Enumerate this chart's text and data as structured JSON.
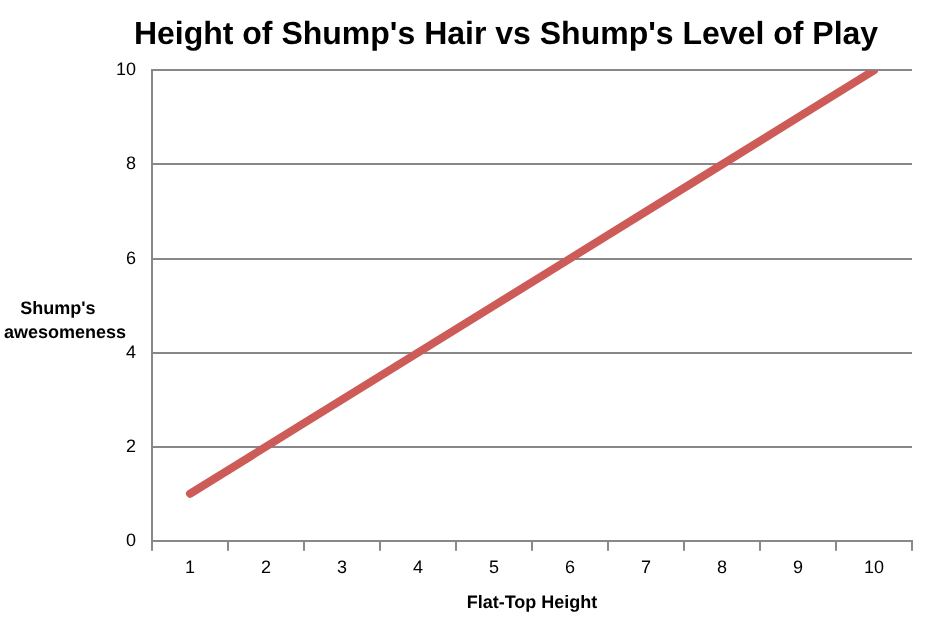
{
  "chart_data": {
    "type": "line",
    "title": "Height of Shump's Hair vs Shump's Level of Play",
    "xlabel": "Flat-Top Height",
    "ylabel": "Shump's awesomeness",
    "categories": [
      "1",
      "2",
      "3",
      "4",
      "5",
      "6",
      "7",
      "8",
      "9",
      "10"
    ],
    "series": [
      {
        "color": "#cd5b58",
        "values": [
          1,
          2,
          3,
          4,
          5,
          6,
          7,
          8,
          9,
          10
        ]
      }
    ],
    "ylim": [
      0,
      10
    ],
    "yticks": [
      0,
      2,
      4,
      6,
      8,
      10
    ],
    "grid": "y",
    "legend": false,
    "marker": "none",
    "line_style": "solid"
  }
}
